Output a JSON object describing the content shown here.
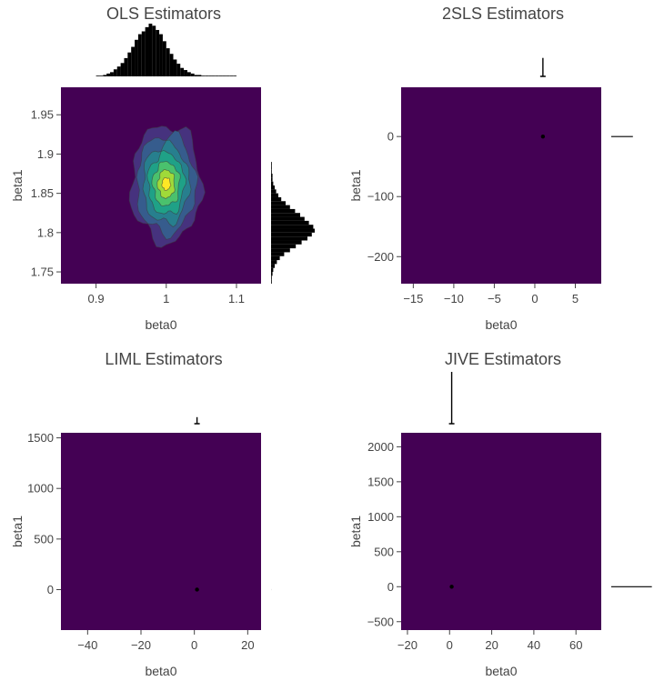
{
  "colors": {
    "plot_bg": "#440154",
    "contours": [
      "#440154",
      "#46327e",
      "#365c8d",
      "#277f8e",
      "#1fa187",
      "#4ac16d",
      "#a0da39",
      "#fde725"
    ],
    "hist": "#000000",
    "text": "#444444"
  },
  "chart_data": [
    {
      "id": "ols",
      "type": "heatmap",
      "subtype": "2d-density-contour-with-marginal-histograms",
      "title": "OLS Estimators",
      "xlabel": "beta0",
      "ylabel": "beta1",
      "xlim": [
        0.85,
        1.135
      ],
      "ylim": [
        1.735,
        1.985
      ],
      "xticks": [
        0.9,
        1,
        1.1
      ],
      "xtick_labels": [
        "0.9",
        "1",
        "1.1"
      ],
      "yticks": [
        1.75,
        1.8,
        1.85,
        1.9,
        1.95
      ],
      "ytick_labels": [
        "1.75",
        "1.8",
        "1.85",
        "1.9",
        "1.95"
      ],
      "density": {
        "center": [
          1.0,
          1.862
        ],
        "levels": [
          {
            "rx": 0.05,
            "ry": 0.075
          },
          {
            "rx": 0.042,
            "ry": 0.063
          },
          {
            "rx": 0.033,
            "ry": 0.05
          },
          {
            "rx": 0.026,
            "ry": 0.039
          },
          {
            "rx": 0.019,
            "ry": 0.028
          },
          {
            "rx": 0.012,
            "ry": 0.018
          },
          {
            "rx": 0.006,
            "ry": 0.008
          }
        ]
      },
      "marginal_x": {
        "bin_start": 0.9,
        "bin_width": 0.005,
        "counts": [
          1,
          1,
          2,
          4,
          6,
          10,
          14,
          19,
          26,
          34,
          42,
          52,
          60,
          64,
          70,
          75,
          72,
          66,
          60,
          50,
          40,
          32,
          24,
          18,
          12,
          9,
          6,
          4,
          2,
          2,
          1,
          1,
          1,
          1,
          1,
          1,
          1,
          1,
          1,
          1
        ]
      },
      "marginal_y": {
        "bin_start": 1.735,
        "bin_width": 0.005,
        "counts": [
          1,
          1,
          2,
          3,
          5,
          8,
          12,
          18,
          26,
          34,
          42,
          50,
          56,
          60,
          58,
          52,
          46,
          40,
          33,
          26,
          20,
          14,
          10,
          7,
          5,
          3,
          2,
          2,
          1,
          1,
          1
        ]
      }
    },
    {
      "id": "2sls",
      "type": "heatmap",
      "subtype": "2d-density-contour-with-marginal-histograms",
      "title": "2SLS Estimators",
      "xlabel": "beta0",
      "ylabel": "beta1",
      "xlim": [
        -16.5,
        8.2
      ],
      "ylim": [
        -245,
        82
      ],
      "xticks": [
        -15,
        -10,
        -5,
        0,
        5
      ],
      "xtick_labels": [
        "−15",
        "−10",
        "−5",
        "0",
        "5"
      ],
      "yticks": [
        -200,
        -100,
        0
      ],
      "ytick_labels": [
        "−200",
        "−100",
        "0"
      ],
      "density": {
        "center": [
          1.0,
          0
        ],
        "levels": []
      },
      "marginal_x": {
        "peak_at": 1.0,
        "spike_height": 0.35
      },
      "marginal_y": {
        "peak_at": 0,
        "spike_width": 0.7
      }
    },
    {
      "id": "liml",
      "type": "heatmap",
      "subtype": "2d-density-contour-with-marginal-histograms",
      "title": "LIML Estimators",
      "xlabel": "beta0",
      "ylabel": "beta1",
      "xlim": [
        -50,
        25
      ],
      "ylim": [
        -400,
        1550
      ],
      "xticks": [
        -40,
        -20,
        0,
        20
      ],
      "xtick_labels": [
        "−40",
        "−20",
        "0",
        "20"
      ],
      "yticks": [
        0,
        500,
        1000,
        1500
      ],
      "ytick_labels": [
        "0",
        "500",
        "1000",
        "1500"
      ],
      "density": {
        "center": [
          1.0,
          0
        ],
        "levels": []
      },
      "marginal_x": {
        "peak_at": 1.0,
        "spike_height": 0.12
      },
      "marginal_y": {
        "peak_at": 0,
        "spike_width": 0.02
      }
    },
    {
      "id": "jive",
      "type": "heatmap",
      "subtype": "2d-density-contour-with-marginal-histograms",
      "title": "JIVE Estimators",
      "xlabel": "beta0",
      "ylabel": "beta1",
      "xlim": [
        -23,
        72
      ],
      "ylim": [
        -620,
        2200
      ],
      "xticks": [
        -20,
        0,
        20,
        40,
        60
      ],
      "xtick_labels": [
        "−20",
        "0",
        "20",
        "40",
        "60"
      ],
      "yticks": [
        -500,
        0,
        500,
        1000,
        1500,
        2000
      ],
      "ytick_labels": [
        "−500",
        "0",
        "500",
        "1000",
        "1500",
        "2000"
      ],
      "density": {
        "center": [
          1.0,
          0
        ],
        "levels": []
      },
      "marginal_x": {
        "peak_at": 1.0,
        "spike_height": 0.95
      },
      "marginal_y": {
        "peak_at": 0,
        "spike_width": 0.95
      }
    }
  ]
}
